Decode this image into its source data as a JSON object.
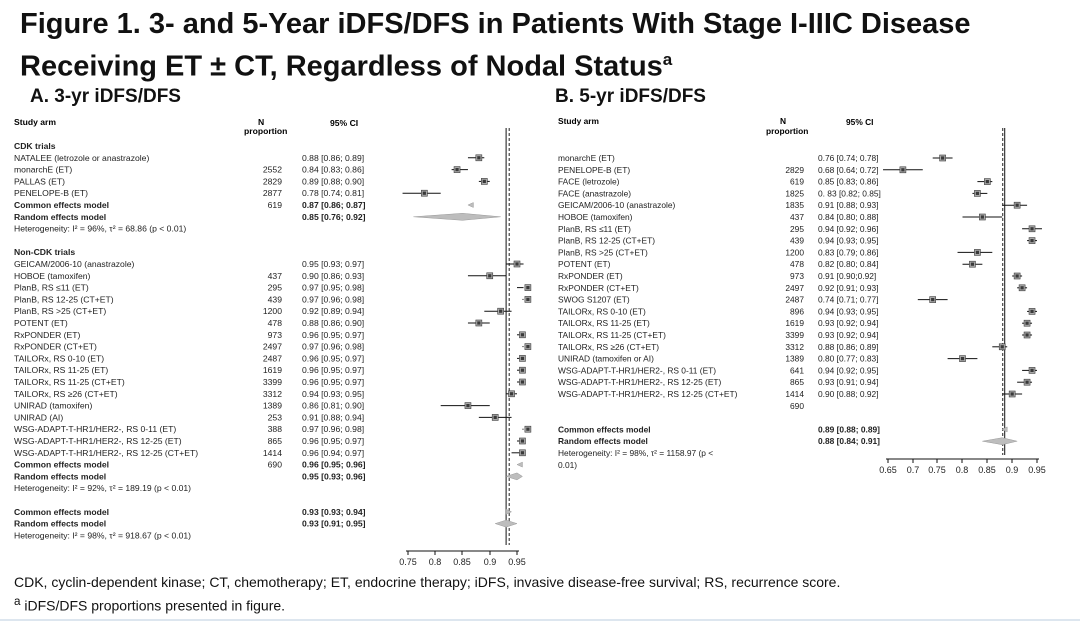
{
  "figure": {
    "title_line1": "Figure 1. 3- and 5-Year iDFS/DFS in Patients With Stage I-IIIC Disease",
    "title_line2": "Receiving ET ± CT, Regardless of Nodal Status",
    "title_sup": "a",
    "footnote1": "CDK, cyclin-dependent kinase; CT, chemotherapy; ET, endocrine therapy; iDFS, invasive disease-free survival; RS, recurrence score.",
    "footnote2_sup": "a",
    "footnote2": " iDFS/DFS proportions presented in figure."
  },
  "colors": {
    "marker": "#3a3a3a",
    "box": "#a8a8a8",
    "diamond": "#bdbdbd",
    "ci_line": "#111111",
    "dashed": "#222222"
  },
  "chart_data": [
    {
      "type": "forest",
      "panel_title": "A. 3-yr iDFS/DFS",
      "headers": {
        "study": "Study arm",
        "n1": "N",
        "n2": "proportion",
        "ci": "95% CI"
      },
      "xlim": [
        0.75,
        0.95
      ],
      "xticks": [
        "0.75",
        "0.8",
        "0.85",
        "0.9",
        "0.95"
      ],
      "ref_solid": 0.93,
      "ref_dashed": 0.932,
      "rows": [
        {
          "kind": "group",
          "label": "CDK trials"
        },
        {
          "kind": "study",
          "label": "NATALEE (letrozole or anastrazole)",
          "n": "",
          "ci": "0.88 [0.86; 0.89]",
          "est": 0.88,
          "lo": 0.86,
          "hi": 0.89
        },
        {
          "kind": "study",
          "label": "monarchE (ET)",
          "n": "2552",
          "ci": "0.84 [0.83; 0.86]",
          "est": 0.84,
          "lo": 0.83,
          "hi": 0.86
        },
        {
          "kind": "study",
          "label": "PALLAS (ET)",
          "n": "2829",
          "ci": "0.89 [0.88; 0.90]",
          "est": 0.89,
          "lo": 0.88,
          "hi": 0.9
        },
        {
          "kind": "study",
          "label": "PENELOPE-B (ET)",
          "n": "2877",
          "ci": "0.78 [0.74; 0.81]",
          "est": 0.78,
          "lo": 0.74,
          "hi": 0.81
        },
        {
          "kind": "common",
          "label": "Common effects model",
          "n": "619",
          "ci": "0.87 [0.86; 0.87]",
          "est": 0.87,
          "lo": 0.86,
          "hi": 0.87
        },
        {
          "kind": "random",
          "label": "Random effects model",
          "n": "",
          "ci": "0.85 [0.76; 0.92]",
          "est": 0.85,
          "lo": 0.76,
          "hi": 0.92
        },
        {
          "kind": "het",
          "label": "Heterogeneity: I² = 96%, τ² = 68.86 (p < 0.01)"
        },
        {
          "kind": "blank"
        },
        {
          "kind": "group",
          "label": "Non-CDK trials"
        },
        {
          "kind": "study",
          "label": "GEICAM/2006-10 (anastrazole)",
          "n": "",
          "ci": "0.95 [0.93; 0.97]",
          "est": 0.95,
          "lo": 0.93,
          "hi": 0.97
        },
        {
          "kind": "study",
          "label": "HOBOE (tamoxifen)",
          "n": "437",
          "ci": "0.90 [0.86; 0.93]",
          "est": 0.9,
          "lo": 0.86,
          "hi": 0.93
        },
        {
          "kind": "study",
          "label": "PlanB, RS ≤11 (ET)",
          "n": "295",
          "ci": "0.97 [0.95; 0.98]",
          "est": 0.97,
          "lo": 0.95,
          "hi": 0.98
        },
        {
          "kind": "study",
          "label": "PlanB, RS 12-25 (CT+ET)",
          "n": "439",
          "ci": "0.97 [0.96; 0.98]",
          "est": 0.97,
          "lo": 0.96,
          "hi": 0.98
        },
        {
          "kind": "study",
          "label": "PlanB, RS >25 (CT+ET)",
          "n": "1200",
          "ci": "0.92 [0.89; 0.94]",
          "est": 0.92,
          "lo": 0.89,
          "hi": 0.94
        },
        {
          "kind": "study",
          "label": "POTENT (ET)",
          "n": "478",
          "ci": "0.88 [0.86; 0.90]",
          "est": 0.88,
          "lo": 0.86,
          "hi": 0.9
        },
        {
          "kind": "study",
          "label": "RxPONDER (ET)",
          "n": "973",
          "ci": "0.96 [0.95; 0.97]",
          "est": 0.96,
          "lo": 0.95,
          "hi": 0.97
        },
        {
          "kind": "study",
          "label": "RxPONDER (CT+ET)",
          "n": "2497",
          "ci": "0.97 [0.96; 0.98]",
          "est": 0.97,
          "lo": 0.96,
          "hi": 0.98
        },
        {
          "kind": "study",
          "label": "TAILORx, RS 0-10 (ET)",
          "n": "2487",
          "ci": "0.96 [0.95; 0.97]",
          "est": 0.96,
          "lo": 0.95,
          "hi": 0.97
        },
        {
          "kind": "study",
          "label": "TAILORx, RS 11-25 (ET)",
          "n": "1619",
          "ci": "0.96 [0.95; 0.97]",
          "est": 0.96,
          "lo": 0.95,
          "hi": 0.97
        },
        {
          "kind": "study",
          "label": "TAILORx, RS 11-25 (CT+ET)",
          "n": "3399",
          "ci": "0.96 [0.95; 0.97]",
          "est": 0.96,
          "lo": 0.95,
          "hi": 0.97
        },
        {
          "kind": "study",
          "label": "TAILORx, RS ≥26 (CT+ET)",
          "n": "3312",
          "ci": "0.94 [0.93; 0.95]",
          "est": 0.94,
          "lo": 0.93,
          "hi": 0.95
        },
        {
          "kind": "study",
          "label": "UNIRAD (tamoxifen)",
          "n": "1389",
          "ci": "0.86 [0.81; 0.90]",
          "est": 0.86,
          "lo": 0.81,
          "hi": 0.9
        },
        {
          "kind": "study",
          "label": "UNIRAD (AI)",
          "n": "253",
          "ci": "0.91 [0.88; 0.94]",
          "est": 0.91,
          "lo": 0.88,
          "hi": 0.94
        },
        {
          "kind": "study",
          "label": "WSG-ADAPT-T-HR1/HER2-, RS 0-11 (ET)",
          "n": "388",
          "ci": "0.97 [0.96; 0.98]",
          "est": 0.97,
          "lo": 0.96,
          "hi": 0.98
        },
        {
          "kind": "study",
          "label": "WSG-ADAPT-T-HR1/HER2-, RS 12-25 (ET)",
          "n": "865",
          "ci": "0.96 [0.95; 0.97]",
          "est": 0.96,
          "lo": 0.95,
          "hi": 0.97
        },
        {
          "kind": "study",
          "label": "WSG-ADAPT-T-HR1/HER2-, RS 12-25 (CT+ET)",
          "n": "1414",
          "ci": "0.96 [0.94; 0.97]",
          "est": 0.96,
          "lo": 0.94,
          "hi": 0.97
        },
        {
          "kind": "common",
          "label": "Common effects model",
          "n": "690",
          "ci": "0.96 [0.95; 0.96]",
          "est": 0.96,
          "lo": 0.95,
          "hi": 0.96
        },
        {
          "kind": "random",
          "label": "Random effects model",
          "n": "",
          "ci": "0.95 [0.93; 0.96]",
          "est": 0.95,
          "lo": 0.93,
          "hi": 0.96
        },
        {
          "kind": "het",
          "label": "Heterogeneity: I² = 92%, τ² = 189.19 (p < 0.01)"
        },
        {
          "kind": "blank"
        },
        {
          "kind": "common",
          "label": "Common effects model",
          "n": "",
          "ci": "0.93 [0.93; 0.94]",
          "est": 0.93,
          "lo": 0.93,
          "hi": 0.94
        },
        {
          "kind": "random",
          "label": "Random effects model",
          "n": "",
          "ci": "0.93 [0.91; 0.95]",
          "est": 0.93,
          "lo": 0.91,
          "hi": 0.95
        },
        {
          "kind": "het",
          "label": "Heterogeneity: I² = 98%, τ² = 918.67 (p < 0.01)"
        }
      ]
    },
    {
      "type": "forest",
      "panel_title": "B. 5-yr iDFS/DFS",
      "headers": {
        "study": "Study arm",
        "n1": "N",
        "n2": "proportion",
        "ci": "95% CI"
      },
      "xlim": [
        0.65,
        0.95
      ],
      "xticks": [
        "0.65",
        "0.7",
        "0.75",
        "0.8",
        "0.85",
        "0.9",
        "0.95"
      ],
      "ref_solid": 0.885,
      "ref_dashed": 0.877,
      "rows": [
        {
          "kind": "study",
          "label": "monarchE (ET)",
          "n": "",
          "ci": "0.76 [0.74; 0.78]",
          "est": 0.76,
          "lo": 0.74,
          "hi": 0.78
        },
        {
          "kind": "study",
          "label": "PENELOPE-B (ET)",
          "n": "2829",
          "ci": "0.68 [0.64; 0.72]",
          "est": 0.68,
          "lo": 0.64,
          "hi": 0.72
        },
        {
          "kind": "study",
          "label": "FACE (letrozole)",
          "n": "619",
          "ci": "0.85 [0.83; 0.86]",
          "est": 0.85,
          "lo": 0.83,
          "hi": 0.86
        },
        {
          "kind": "study",
          "label": "FACE (anastrazole)",
          "n": "1825",
          "ci": "0. 83 [0.82; 0.85]",
          "est": 0.83,
          "lo": 0.82,
          "hi": 0.85
        },
        {
          "kind": "study",
          "label": "GEICAM/2006-10 (anastrazole)",
          "n": "1835",
          "ci": "0.91 [0.88; 0.93]",
          "est": 0.91,
          "lo": 0.88,
          "hi": 0.93
        },
        {
          "kind": "study",
          "label": "HOBOE (tamoxifen)",
          "n": "437",
          "ci": "0.84 [0.80; 0.88]",
          "est": 0.84,
          "lo": 0.8,
          "hi": 0.88
        },
        {
          "kind": "study",
          "label": "PlanB, RS ≤11 (ET)",
          "n": "295",
          "ci": "0.94 [0.92; 0.96]",
          "est": 0.94,
          "lo": 0.92,
          "hi": 0.96
        },
        {
          "kind": "study",
          "label": "PlanB, RS 12-25 (CT+ET)",
          "n": "439",
          "ci": "0.94 [0.93; 0.95]",
          "est": 0.94,
          "lo": 0.93,
          "hi": 0.95
        },
        {
          "kind": "study",
          "label": "PlanB, RS >25 (CT+ET)",
          "n": "1200",
          "ci": "0.83 [0.79; 0.86]",
          "est": 0.83,
          "lo": 0.79,
          "hi": 0.86
        },
        {
          "kind": "study",
          "label": "POTENT (ET)",
          "n": "478",
          "ci": "0.82 [0.80; 0.84]",
          "est": 0.82,
          "lo": 0.8,
          "hi": 0.84
        },
        {
          "kind": "study",
          "label": "RxPONDER (ET)",
          "n": "973",
          "ci": "0.91 [0.90;0.92]",
          "est": 0.91,
          "lo": 0.9,
          "hi": 0.92
        },
        {
          "kind": "study",
          "label": "RxPONDER (CT+ET)",
          "n": "2497",
          "ci": "0.92 [0.91; 0.93]",
          "est": 0.92,
          "lo": 0.91,
          "hi": 0.93
        },
        {
          "kind": "study",
          "label": "SWOG S1207 (ET)",
          "n": "2487",
          "ci": "0.74 [0.71; 0.77]",
          "est": 0.74,
          "lo": 0.71,
          "hi": 0.77
        },
        {
          "kind": "study",
          "label": "TAILORx, RS 0-10 (ET)",
          "n": "896",
          "ci": "0.94 [0.93; 0.95]",
          "est": 0.94,
          "lo": 0.93,
          "hi": 0.95
        },
        {
          "kind": "study",
          "label": "TAILORx, RS 11-25 (ET)",
          "n": "1619",
          "ci": "0.93 [0.92; 0.94]",
          "est": 0.93,
          "lo": 0.92,
          "hi": 0.94
        },
        {
          "kind": "study",
          "label": "TAILORx, RS 11-25 (CT+ET)",
          "n": "3399",
          "ci": "0.93 [0.92; 0.94]",
          "est": 0.93,
          "lo": 0.92,
          "hi": 0.94
        },
        {
          "kind": "study",
          "label": "TAILORx, RS ≥26 (CT+ET)",
          "n": "3312",
          "ci": "0.88 [0.86; 0.89]",
          "est": 0.88,
          "lo": 0.86,
          "hi": 0.89
        },
        {
          "kind": "study",
          "label": "UNIRAD (tamoxifen or AI)",
          "n": "1389",
          "ci": "0.80 [0.77; 0.83]",
          "est": 0.8,
          "lo": 0.77,
          "hi": 0.83
        },
        {
          "kind": "study",
          "label": "WSG-ADAPT-T-HR1/HER2-, RS 0-11 (ET)",
          "n": "641",
          "ci": "0.94 [0.92; 0.95]",
          "est": 0.94,
          "lo": 0.92,
          "hi": 0.95
        },
        {
          "kind": "study",
          "label": "WSG-ADAPT-T-HR1/HER2-, RS 12-25 (ET)",
          "n": "865",
          "ci": "0.93 [0.91; 0.94]",
          "est": 0.93,
          "lo": 0.91,
          "hi": 0.94
        },
        {
          "kind": "study",
          "label": "WSG-ADAPT-T-HR1/HER2-, RS 12-25 (CT+ET)",
          "n": "1414",
          "ci": "0.90 [0.88; 0.92]",
          "est": 0.9,
          "lo": 0.88,
          "hi": 0.92
        },
        {
          "kind": "ntext",
          "n": "690"
        },
        {
          "kind": "blank"
        },
        {
          "kind": "common",
          "label": "Common effects model",
          "n": "",
          "ci": "0.89 [0.88; 0.89]",
          "est": 0.89,
          "lo": 0.88,
          "hi": 0.89
        },
        {
          "kind": "random",
          "label": "Random effects model",
          "n": "",
          "ci": "0.88 [0.84; 0.91]",
          "est": 0.88,
          "lo": 0.84,
          "hi": 0.91
        },
        {
          "kind": "het",
          "label": "Heterogeneity: I² = 98%, τ² = 1158.97 (p <"
        },
        {
          "kind": "het",
          "label": "0.01)"
        }
      ]
    }
  ]
}
